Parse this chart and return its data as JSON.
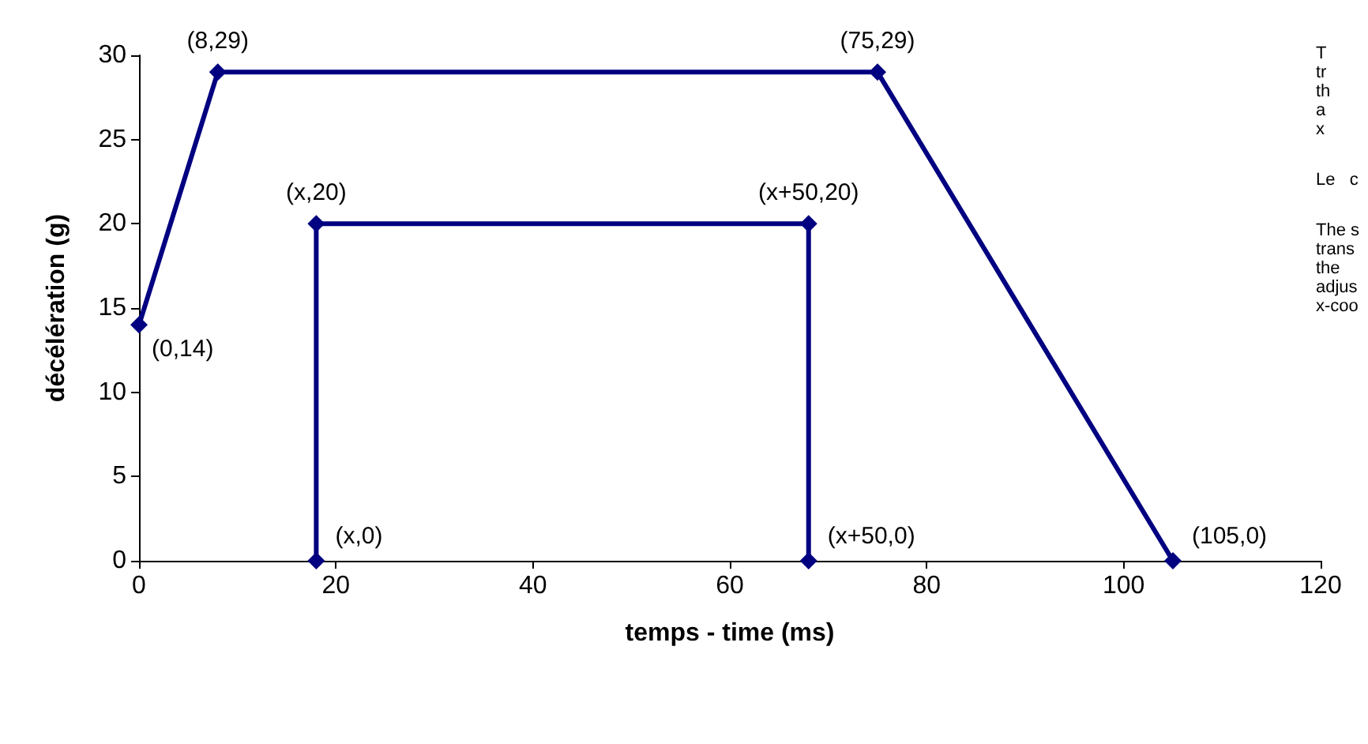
{
  "chart_data": {
    "type": "line",
    "xlabel": "temps - time (ms)",
    "ylabel": "décélération (g)",
    "xlim": [
      0,
      120
    ],
    "xticks": [
      0,
      20,
      40,
      60,
      80,
      100,
      120
    ],
    "ylim": [
      0,
      30
    ],
    "yticks": [
      0,
      5,
      10,
      15,
      20,
      25,
      30
    ],
    "grid": false,
    "marker": "diamond",
    "line_style": "solid",
    "series": [
      {
        "color": "#000080",
        "x": [
          0,
          8,
          75,
          105
        ],
        "values": [
          14,
          29,
          29,
          0
        ]
      },
      {
        "color": "#000080",
        "x": [
          18,
          18,
          68,
          68
        ],
        "values": [
          0,
          20,
          20,
          0
        ]
      }
    ],
    "annotations": [
      {
        "text": "(0,14)",
        "x": 0,
        "y": 14
      },
      {
        "text": "(8,29)",
        "x": 8,
        "y": 29
      },
      {
        "text": "(75,29)",
        "x": 75,
        "y": 29
      },
      {
        "text": "(105,0)",
        "x": 105,
        "y": 0
      },
      {
        "text": "(x,20)",
        "x": 18,
        "y": 20
      },
      {
        "text": "(x+50,20)",
        "x": 68,
        "y": 20
      },
      {
        "text": "(x,0)",
        "x": 18,
        "y": 0
      },
      {
        "text": "(x+50,0)",
        "x": 68,
        "y": 0
      },
      "T\ntr\nth\na\nx",
      "Le   c",
      "The s\ntrans\nthe\nadjus\nx-coo"
    ]
  }
}
